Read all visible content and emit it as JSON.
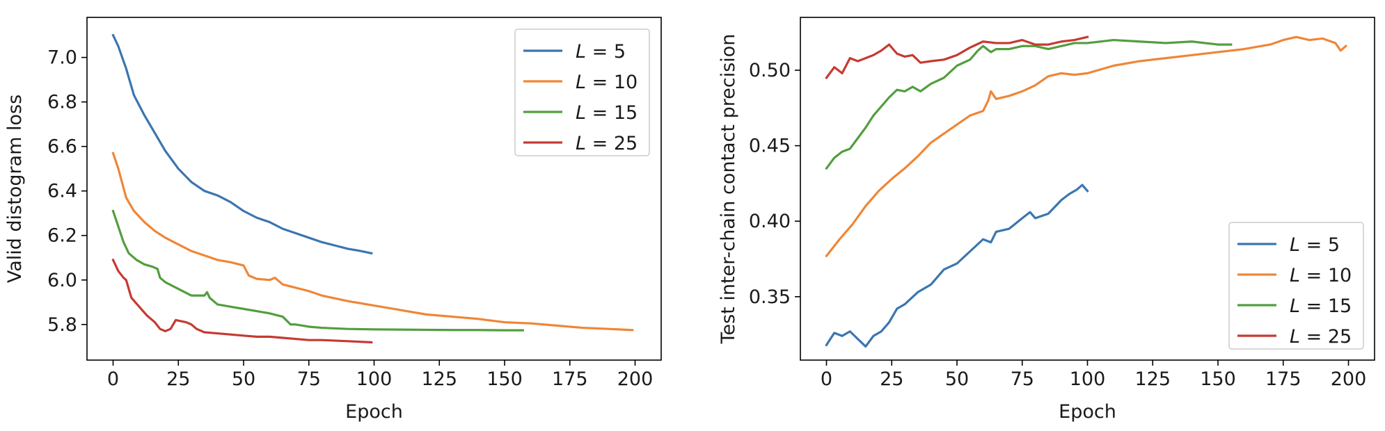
{
  "chart_data": [
    {
      "type": "line",
      "xlabel": "Epoch",
      "ylabel": "Valid distogram loss",
      "xlim": [
        -10,
        210
      ],
      "ylim": [
        5.64,
        7.18
      ],
      "xticks": [
        0,
        25,
        50,
        75,
        100,
        125,
        150,
        175,
        200
      ],
      "xtick_labels": [
        "0",
        "25",
        "50",
        "75",
        "100",
        "125",
        "150",
        "175",
        "200"
      ],
      "yticks": [
        5.8,
        6.0,
        6.2,
        6.4,
        6.6,
        6.8,
        7.0
      ],
      "ytick_labels": [
        "5.8",
        "6.0",
        "6.2",
        "6.4",
        "6.6",
        "6.8",
        "7.0"
      ],
      "legend_location": "upper right",
      "series": [
        {
          "name": "L = 5",
          "var": "L",
          "val": "5",
          "color": "#3b75af",
          "x": [
            0,
            2,
            5,
            8,
            12,
            16,
            20,
            25,
            30,
            35,
            40,
            45,
            50,
            55,
            60,
            65,
            70,
            75,
            80,
            85,
            90,
            95,
            99
          ],
          "y": [
            7.1,
            7.05,
            6.95,
            6.83,
            6.74,
            6.66,
            6.58,
            6.5,
            6.44,
            6.4,
            6.38,
            6.35,
            6.31,
            6.28,
            6.26,
            6.23,
            6.21,
            6.19,
            6.17,
            6.155,
            6.14,
            6.13,
            6.12
          ]
        },
        {
          "name": "L = 10",
          "var": "L",
          "val": "10",
          "color": "#ef8636",
          "x": [
            0,
            2,
            5,
            8,
            12,
            16,
            20,
            25,
            30,
            35,
            40,
            45,
            50,
            52,
            55,
            60,
            62,
            65,
            70,
            75,
            80,
            90,
            100,
            110,
            120,
            130,
            140,
            150,
            160,
            170,
            180,
            190,
            199
          ],
          "y": [
            6.57,
            6.5,
            6.37,
            6.31,
            6.26,
            6.22,
            6.19,
            6.16,
            6.13,
            6.11,
            6.09,
            6.08,
            6.065,
            6.02,
            6.005,
            6.0,
            6.01,
            5.98,
            5.965,
            5.95,
            5.93,
            5.905,
            5.885,
            5.865,
            5.845,
            5.835,
            5.825,
            5.81,
            5.805,
            5.795,
            5.785,
            5.78,
            5.775
          ]
        },
        {
          "name": "L = 15",
          "var": "L",
          "val": "15",
          "color": "#529e3e",
          "x": [
            0,
            2,
            4,
            6,
            9,
            12,
            15,
            17,
            18,
            20,
            25,
            30,
            35,
            36,
            37,
            40,
            45,
            50,
            55,
            60,
            65,
            68,
            70,
            75,
            80,
            90,
            100,
            110,
            120,
            130,
            140,
            150,
            157
          ],
          "y": [
            6.31,
            6.24,
            6.17,
            6.12,
            6.09,
            6.07,
            6.06,
            6.05,
            6.01,
            5.99,
            5.96,
            5.93,
            5.93,
            5.945,
            5.92,
            5.89,
            5.88,
            5.87,
            5.86,
            5.85,
            5.835,
            5.8,
            5.8,
            5.79,
            5.785,
            5.78,
            5.778,
            5.777,
            5.776,
            5.775,
            5.775,
            5.774,
            5.774
          ]
        },
        {
          "name": "L = 25",
          "var": "L",
          "val": "25",
          "color": "#c53a32",
          "x": [
            0,
            2,
            4,
            5,
            7,
            10,
            13,
            16,
            18,
            20,
            22,
            24,
            28,
            30,
            32,
            35,
            40,
            45,
            50,
            55,
            60,
            65,
            70,
            75,
            80,
            90,
            99
          ],
          "y": [
            6.09,
            6.04,
            6.01,
            6.0,
            5.92,
            5.88,
            5.84,
            5.81,
            5.78,
            5.77,
            5.78,
            5.82,
            5.81,
            5.8,
            5.78,
            5.765,
            5.76,
            5.755,
            5.75,
            5.745,
            5.745,
            5.74,
            5.735,
            5.73,
            5.73,
            5.725,
            5.72
          ]
        }
      ]
    },
    {
      "type": "line",
      "xlabel": "Epoch",
      "ylabel": "Test inter-chain contact precision",
      "xlim": [
        -10,
        210
      ],
      "ylim": [
        0.308,
        0.535
      ],
      "xticks": [
        0,
        25,
        50,
        75,
        100,
        125,
        150,
        175,
        200
      ],
      "xtick_labels": [
        "0",
        "25",
        "50",
        "75",
        "100",
        "125",
        "150",
        "175",
        "200"
      ],
      "yticks": [
        0.35,
        0.4,
        0.45,
        0.5
      ],
      "ytick_labels": [
        "0.35",
        "0.40",
        "0.45",
        "0.50"
      ],
      "legend_location": "lower right",
      "series": [
        {
          "name": "L = 5",
          "var": "L",
          "val": "5",
          "color": "#3b75af",
          "x": [
            0,
            3,
            6,
            9,
            12,
            15,
            18,
            21,
            24,
            27,
            30,
            35,
            40,
            45,
            50,
            55,
            60,
            63,
            65,
            70,
            75,
            78,
            80,
            85,
            90,
            93,
            96,
            98,
            100
          ],
          "y": [
            0.318,
            0.326,
            0.324,
            0.327,
            0.322,
            0.317,
            0.324,
            0.327,
            0.333,
            0.342,
            0.345,
            0.353,
            0.358,
            0.368,
            0.372,
            0.38,
            0.388,
            0.386,
            0.393,
            0.395,
            0.402,
            0.406,
            0.402,
            0.405,
            0.414,
            0.418,
            0.421,
            0.424,
            0.42
          ]
        },
        {
          "name": "L = 10",
          "var": "L",
          "val": "10",
          "color": "#ef8636",
          "x": [
            0,
            5,
            10,
            15,
            20,
            25,
            30,
            35,
            40,
            45,
            50,
            55,
            60,
            62,
            63,
            65,
            70,
            75,
            80,
            85,
            90,
            95,
            100,
            110,
            120,
            130,
            140,
            150,
            160,
            170,
            175,
            180,
            185,
            190,
            195,
            197,
            199
          ],
          "y": [
            0.377,
            0.388,
            0.398,
            0.41,
            0.42,
            0.428,
            0.435,
            0.443,
            0.452,
            0.458,
            0.464,
            0.47,
            0.473,
            0.48,
            0.486,
            0.481,
            0.483,
            0.486,
            0.49,
            0.496,
            0.498,
            0.497,
            0.498,
            0.503,
            0.506,
            0.508,
            0.51,
            0.512,
            0.514,
            0.517,
            0.52,
            0.522,
            0.52,
            0.521,
            0.518,
            0.513,
            0.516
          ]
        },
        {
          "name": "L = 15",
          "var": "L",
          "val": "15",
          "color": "#529e3e",
          "x": [
            0,
            3,
            6,
            9,
            12,
            15,
            18,
            21,
            24,
            27,
            30,
            33,
            36,
            40,
            45,
            50,
            55,
            58,
            60,
            63,
            65,
            70,
            75,
            80,
            85,
            90,
            95,
            100,
            110,
            120,
            130,
            140,
            150,
            155
          ],
          "y": [
            0.435,
            0.442,
            0.446,
            0.448,
            0.455,
            0.462,
            0.47,
            0.476,
            0.482,
            0.487,
            0.486,
            0.489,
            0.486,
            0.491,
            0.495,
            0.503,
            0.507,
            0.513,
            0.516,
            0.512,
            0.514,
            0.514,
            0.516,
            0.516,
            0.514,
            0.516,
            0.518,
            0.518,
            0.52,
            0.519,
            0.518,
            0.519,
            0.517,
            0.517
          ]
        },
        {
          "name": "L = 25",
          "var": "L",
          "val": "25",
          "color": "#c53a32",
          "x": [
            0,
            3,
            6,
            9,
            12,
            15,
            18,
            21,
            24,
            27,
            30,
            33,
            36,
            40,
            45,
            50,
            55,
            60,
            65,
            70,
            75,
            80,
            85,
            90,
            95,
            100
          ],
          "y": [
            0.495,
            0.502,
            0.498,
            0.508,
            0.506,
            0.508,
            0.51,
            0.513,
            0.517,
            0.511,
            0.509,
            0.51,
            0.505,
            0.506,
            0.507,
            0.51,
            0.515,
            0.519,
            0.518,
            0.518,
            0.52,
            0.517,
            0.517,
            0.519,
            0.52,
            0.522
          ]
        }
      ]
    }
  ]
}
